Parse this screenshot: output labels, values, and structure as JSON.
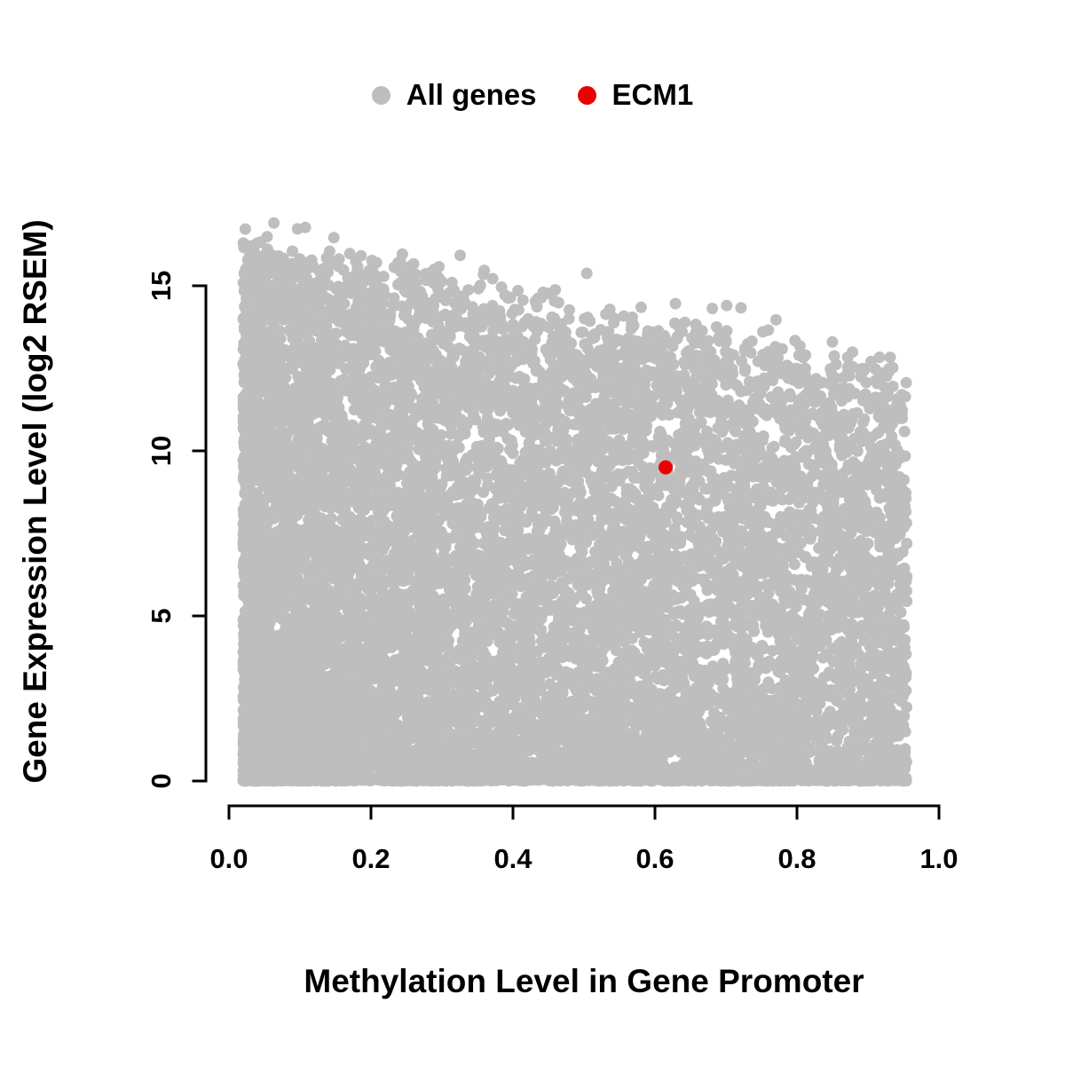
{
  "legend": {
    "items": [
      {
        "label": "All genes",
        "color": "#bebebe"
      },
      {
        "label": "ECM1",
        "color": "#ee0000"
      }
    ]
  },
  "chart_data": {
    "type": "scatter",
    "title": "",
    "xlabel": "Methylation Level in Gene Promoter",
    "ylabel": "Gene Expression Level (log2 RSEM)",
    "xlim": [
      0,
      1
    ],
    "ylim": [
      0,
      15
    ],
    "grid": false,
    "legend_position": "top",
    "x_ticks": [
      {
        "value": 0.0,
        "label": "0.0"
      },
      {
        "value": 0.2,
        "label": "0.2"
      },
      {
        "value": 0.4,
        "label": "0.4"
      },
      {
        "value": 0.6,
        "label": "0.6"
      },
      {
        "value": 0.8,
        "label": "0.8"
      },
      {
        "value": 1.0,
        "label": "1.0"
      }
    ],
    "y_ticks": [
      {
        "value": 0,
        "label": "0"
      },
      {
        "value": 5,
        "label": "5"
      },
      {
        "value": 10,
        "label": "10"
      },
      {
        "value": 15,
        "label": "15"
      }
    ],
    "series": [
      {
        "name": "All genes",
        "kind": "density-cloud",
        "color": "#bebebe",
        "point_radius": 6.5,
        "n_points": 12000,
        "seed": 42,
        "x_min": 0.02,
        "x_max": 0.955,
        "x_pow": 1.35,
        "envelope_intercept": 16.2,
        "envelope_slope": -4.2,
        "envelope_jitter": 1.4,
        "y_pow": 1.35,
        "bottom_line_fraction": 0.07,
        "outlier_fraction": 0.002,
        "y_max": 16.9
      },
      {
        "name": "ECM1",
        "kind": "points",
        "color": "#ee0000",
        "point_radius": 8,
        "points": [
          [
            0.615,
            9.5
          ]
        ]
      }
    ]
  }
}
